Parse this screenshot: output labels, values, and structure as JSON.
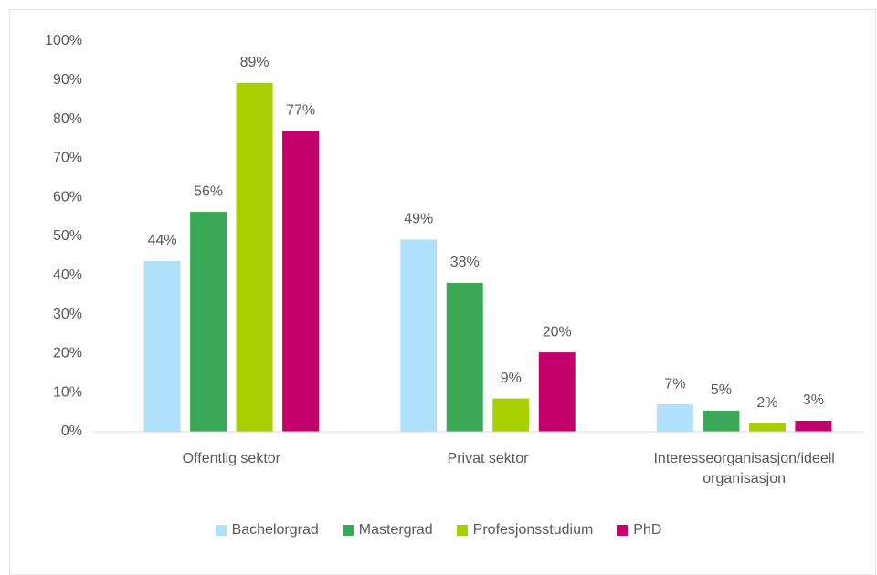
{
  "chart_data": {
    "type": "bar",
    "categories": [
      "Offentlig sektor",
      "Privat sektor",
      "Interesseorganisasjon/ideell organisasjon"
    ],
    "series": [
      {
        "name": "Bachelorgrad",
        "color": "#b0e0fc",
        "values": [
          43.7,
          49.2,
          7.0
        ],
        "value_labels": [
          "44%",
          "49%",
          "7%"
        ]
      },
      {
        "name": "Mastergrad",
        "color": "#3aa857",
        "values": [
          56.3,
          38.1,
          5.4
        ],
        "value_labels": [
          "56%",
          "38%",
          "5%"
        ]
      },
      {
        "name": "Profesjonsstudium",
        "color": "#a8d000",
        "values": [
          89.3,
          8.5,
          2.1
        ],
        "value_labels": [
          "89%",
          "9%",
          "2%"
        ]
      },
      {
        "name": "PhD",
        "color": "#c4006d",
        "values": [
          77.0,
          20.3,
          2.8
        ],
        "value_labels": [
          "77%",
          "20%",
          "3%"
        ]
      }
    ],
    "ylim": [
      0,
      100
    ],
    "yticks": [
      {
        "value": 0,
        "label": "0%"
      },
      {
        "value": 10,
        "label": "10%"
      },
      {
        "value": 20,
        "label": "20%"
      },
      {
        "value": 30,
        "label": "30%"
      },
      {
        "value": 40,
        "label": "40%"
      },
      {
        "value": 50,
        "label": "50%"
      },
      {
        "value": 60,
        "label": "60%"
      },
      {
        "value": 70,
        "label": "70%"
      },
      {
        "value": 80,
        "label": "80%"
      },
      {
        "value": 90,
        "label": "90%"
      },
      {
        "value": 100,
        "label": "100%"
      }
    ],
    "grid": false,
    "legend": "bottom"
  }
}
